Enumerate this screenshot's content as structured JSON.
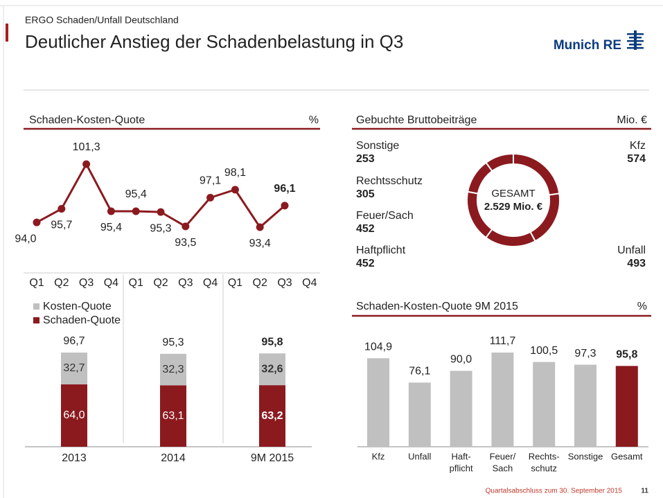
{
  "header": {
    "supertitle": "ERGO Schaden/Unfall Deutschland",
    "title": "Deutlicher Anstieg der Schadenbelastung in Q3",
    "logo": "Munich RE"
  },
  "footer": {
    "text": "Quartalsabschluss zum 30. September 2015",
    "page": "11"
  },
  "chart_data": [
    {
      "type": "line",
      "title": "Schaden-Kosten-Quote",
      "unit": "%",
      "color": "#8b1a1f",
      "highlight": 10,
      "categories": [
        "Q1",
        "Q2",
        "Q3",
        "Q4",
        "Q1",
        "Q2",
        "Q3",
        "Q4",
        "Q1",
        "Q2",
        "Q3",
        "Q4"
      ],
      "values": [
        94.0,
        95.7,
        101.3,
        95.4,
        95.4,
        95.3,
        93.5,
        97.1,
        98.1,
        93.4,
        96.1,
        null
      ],
      "value_labels": [
        "94,0",
        "95,7",
        "101,3",
        "95,4",
        "95,4",
        "95,3",
        "93,5",
        "97,1",
        "98,1",
        "93,4",
        "96,1",
        null
      ]
    },
    {
      "type": "stacked_bar",
      "highlight": 2,
      "categories": [
        "2013",
        "2014",
        "9M 2015"
      ],
      "series": [
        {
          "name": "Schaden-Quote",
          "color": "#8b1a1f",
          "values": [
            64.0,
            63.1,
            63.2
          ],
          "value_labels": [
            "64,0",
            "63,1",
            "63,2"
          ]
        },
        {
          "name": "Kosten-Quote",
          "color": "#c0c0c0",
          "values": [
            32.7,
            32.3,
            32.6
          ],
          "value_labels": [
            "32,7",
            "32,3",
            "32,6"
          ]
        }
      ],
      "totals": [
        96.7,
        95.3,
        95.8
      ],
      "total_labels": [
        "96,7",
        "95,3",
        "95,8"
      ]
    },
    {
      "type": "donut",
      "title": "Gebuchte Bruttobeiträge",
      "unit": "Mio. €",
      "color": "#8b1a1f",
      "categories": [
        "Kfz",
        "Unfall",
        "Haftpflicht",
        "Feuer/Sach",
        "Rechtsschutz",
        "Sonstige"
      ],
      "values": [
        574,
        493,
        452,
        452,
        305,
        253
      ],
      "center_label": "GESAMT",
      "center_value": "2.529 Mio. €"
    },
    {
      "type": "bar",
      "title": "Schaden-Kosten-Quote 9M 2015",
      "unit": "%",
      "highlight": 6,
      "categories": [
        [
          "Kfz"
        ],
        [
          "Unfall"
        ],
        [
          "Haft-",
          "pflicht"
        ],
        [
          "Feuer/",
          "Sach"
        ],
        [
          "Rechts-",
          "schutz"
        ],
        [
          "Sonstige"
        ],
        [
          "Gesamt"
        ]
      ],
      "values": [
        104.9,
        76.1,
        90.0,
        111.7,
        100.5,
        97.3,
        95.8
      ],
      "value_labels": [
        "104,9",
        "76,1",
        "90,0",
        "111,7",
        "100,5",
        "97,3",
        "95,8"
      ],
      "colors": [
        "#c0c0c0",
        "#c0c0c0",
        "#c0c0c0",
        "#c0c0c0",
        "#c0c0c0",
        "#c0c0c0",
        "#8b1a1f"
      ]
    }
  ]
}
